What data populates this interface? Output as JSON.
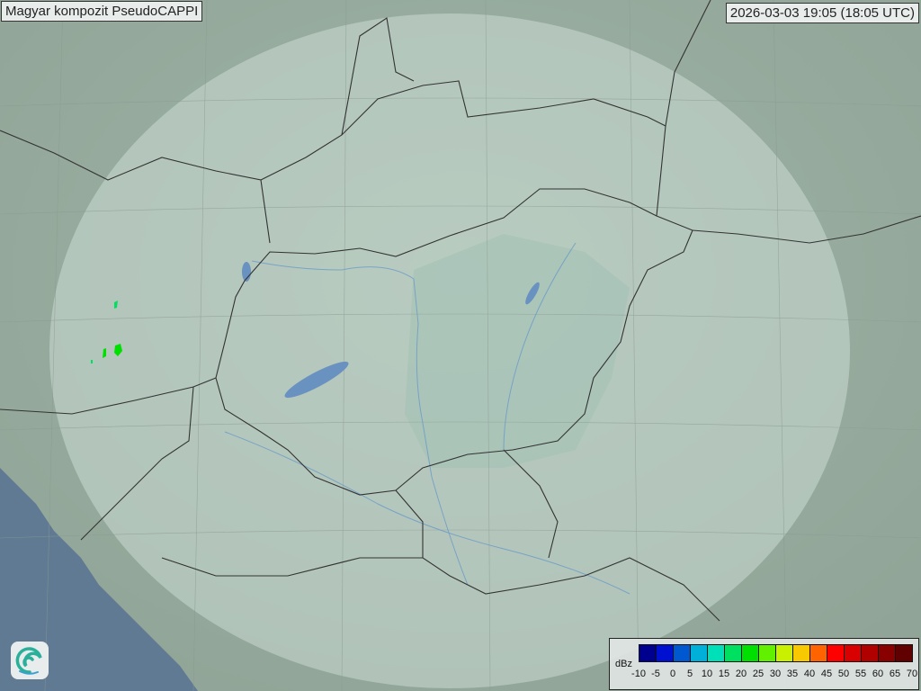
{
  "title": "Magyar kompozit  PseudoCAPPI",
  "timestamp": "2026-03-03 19:05 (18:05 UTC)",
  "legend": {
    "unit": "dBz",
    "ticks": [
      "-10",
      "-5",
      "0",
      "5",
      "10",
      "15",
      "20",
      "25",
      "30",
      "35",
      "40",
      "45",
      "50",
      "55",
      "60",
      "65",
      "70"
    ],
    "colors": [
      "#00008f",
      "#0010d0",
      "#0058d0",
      "#00b0d8",
      "#00e0b8",
      "#00e060",
      "#00e000",
      "#60f000",
      "#c8f000",
      "#f8c800",
      "#ff6400",
      "#ff0000",
      "#d80000",
      "#b00000",
      "#880000",
      "#600000"
    ]
  },
  "logo": {
    "icon": "met-service-swirl-icon"
  },
  "map": {
    "land_color": "#a9b9ac",
    "radar_coverage_color": "#d8e6e0",
    "sea_color": "#5f7a92",
    "echo_color": "#00e000"
  }
}
